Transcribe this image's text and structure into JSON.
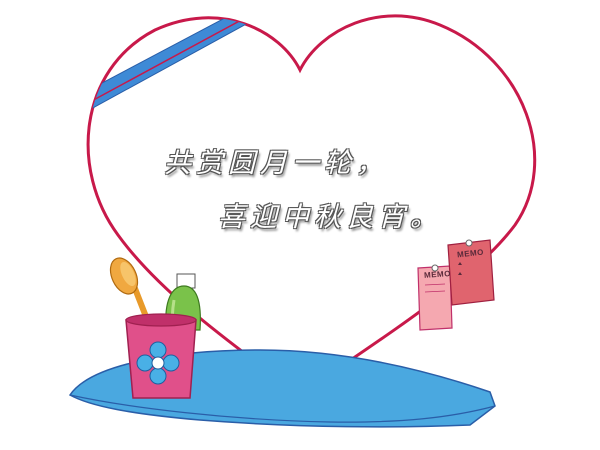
{
  "poem": {
    "line1": "共赏圆月一轮，",
    "line2": "喜迎中秋良宵。"
  },
  "memo": {
    "back_label": "MEMO",
    "front_label": "MEMO"
  },
  "colors": {
    "heart_outline": "#c8194a",
    "heart_fill": "#ffffff",
    "shelf": "#4aa8e0",
    "shelf_edge": "#2a5ea8",
    "cup": "#e0508a",
    "cup_rim": "#c0306a",
    "flower": "#49b0e6",
    "brush": "#e89a2a",
    "tube": "#7ac24a",
    "memo_back": "#f5a8b0",
    "memo_front": "#e0646e",
    "ribbon": "#3e8ad6"
  },
  "icons": {
    "cup": "pen-cup-icon",
    "brush": "brush-icon",
    "tube": "tube-icon",
    "pin": "pushpin-icon"
  }
}
